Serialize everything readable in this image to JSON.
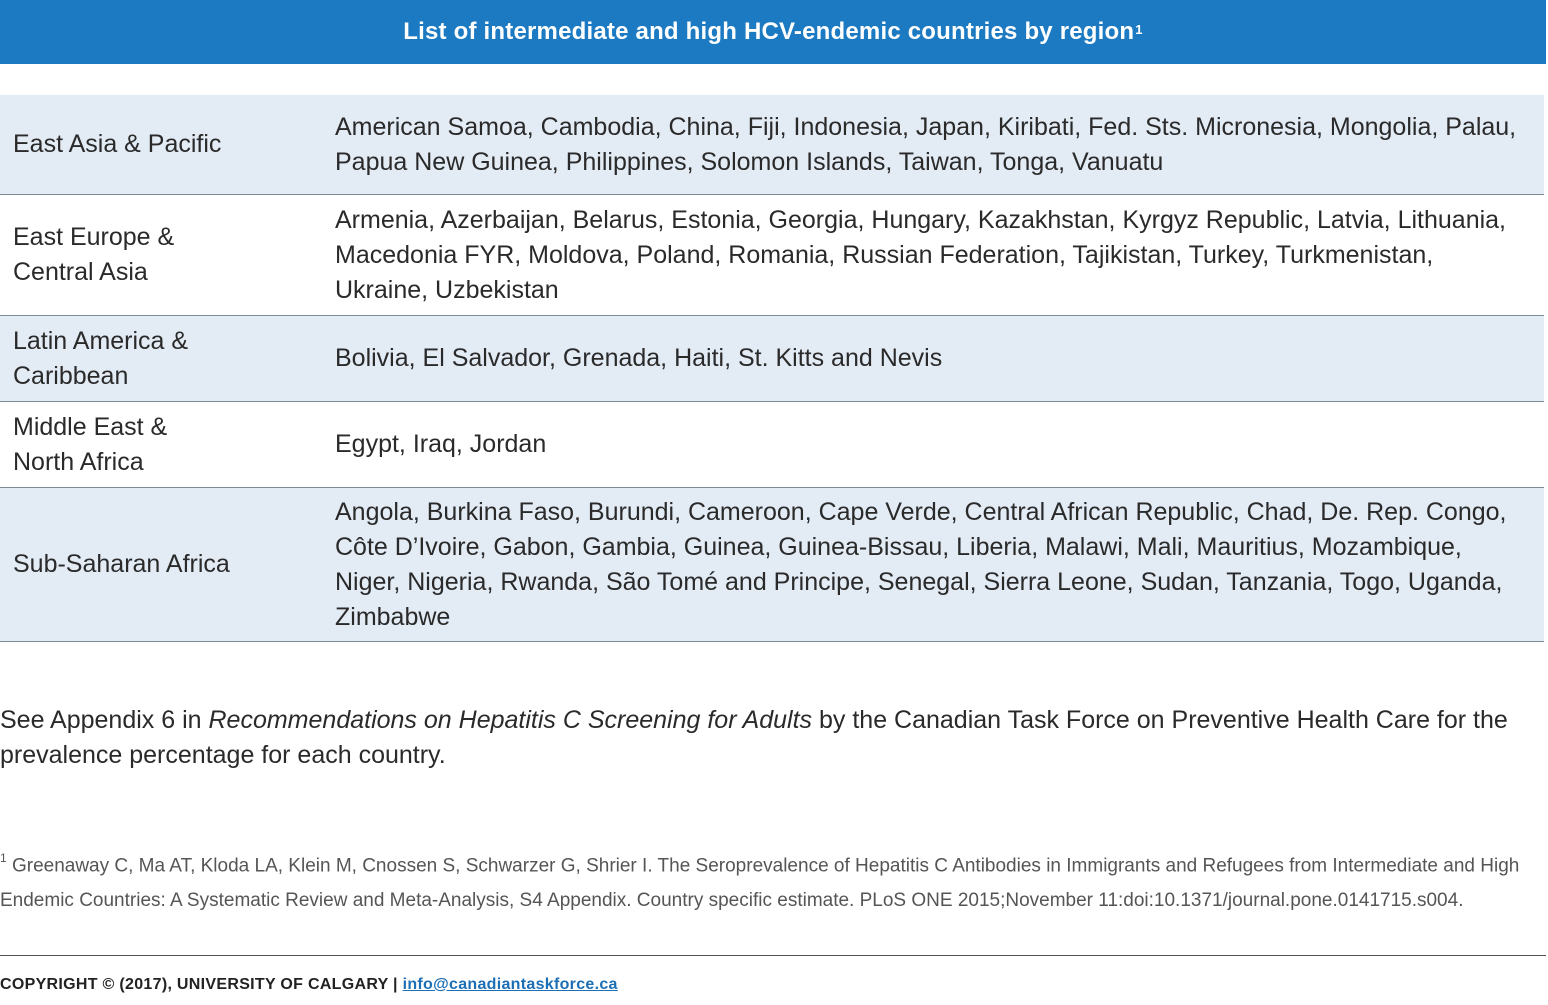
{
  "banner": {
    "title": "List of intermediate and high HCV-endemic countries by region",
    "sup": "1"
  },
  "table": {
    "rows": [
      {
        "region": "East Asia & Pacific",
        "countries": "American Samoa, Cambodia, China, Fiji, Indonesia, Japan, Kiribati, Fed. Sts. Micronesia, Mongolia, Palau, Papua New Guinea, Philippines, Solomon Islands, Taiwan, Tonga, Vanuatu"
      },
      {
        "region": "East Europe & Central Asia",
        "countries": "Armenia, Azerbaijan, Belarus, Estonia, Georgia, Hungary, Kazakhstan, Kyrgyz Republic, Latvia, Lithuania, Macedonia FYR, Moldova, Poland, Romania, Russian Federation, Tajikistan, Turkey, Turkmenistan, Ukraine, Uzbekistan"
      },
      {
        "region": "Latin America & Caribbean",
        "countries": "Bolivia, El Salvador, Grenada, Haiti, St. Kitts and Nevis"
      },
      {
        "region": "Middle East & North Africa",
        "countries": "Egypt, Iraq, Jordan"
      },
      {
        "region": "Sub-Saharan Africa",
        "countries": "Angola, Burkina Faso, Burundi, Cameroon, Cape Verde, Central African Republic, Chad, De. Rep. Congo, Côte D’Ivoire, Gabon, Gambia, Guinea, Guinea-Bissau, Liberia, Malawi, Mali, Mauritius, Mozambique, Niger, Nigeria, Rwanda, São Tomé and Principe, Senegal, Sierra Leone, Sudan, Tanzania, Togo, Uganda, Zimbabwe"
      }
    ]
  },
  "note": {
    "before": "See Appendix 6 in ",
    "italic": "Recommendations on Hepatitis C Screening for Adults",
    "after": " by the Canadian Task Force on Preventive Health Care for the prevalence percentage for each country."
  },
  "footnote": {
    "marker": "1",
    "text": " Greenaway C, Ma AT, Kloda LA, Klein M, Cnossen S, Schwarzer G, Shrier I. The Seroprevalence of Hepatitis C Antibodies in Immigrants and Refugees from Intermediate and High Endemic Countries: A Systematic Review and Meta-Analysis, S4 Appendix. Country specific estimate. PLoS ONE 2015;November 11:doi:10.1371/journal.pone.0141715.s004."
  },
  "copyright": {
    "text": "COPYRIGHT © (2017), UNIVERSITY OF CALGARY | ",
    "email": "info@canadiantaskforce.ca"
  }
}
